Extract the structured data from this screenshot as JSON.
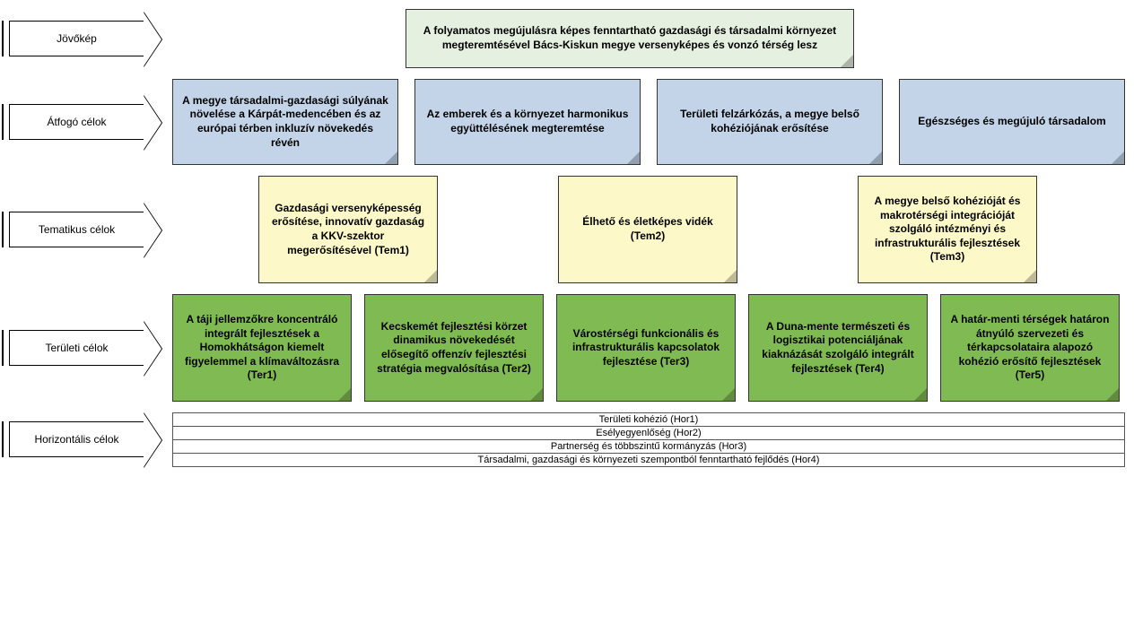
{
  "colors": {
    "vision_bg": "#e6f0e0",
    "overall_bg": "#c3d4e8",
    "thematic_bg": "#fdf8c7",
    "territorial_bg": "#7fbb52",
    "horizontal_bg": "#ffffff",
    "border": "#333333"
  },
  "rows": {
    "vision": {
      "label": "Jövőkép",
      "note": "A folyamatos megújulásra képes fenntartható gazdasági és társadalmi környezet megteremtésével Bács-Kiskun megye versenyképes és vonzó térség lesz"
    },
    "overall": {
      "label": "Átfogó célok",
      "items": [
        "A megye társadalmi-gazdasági súlyának növelése a Kárpát-medencében és az európai térben inkluzív növekedés révén",
        "Az emberek és a környezet harmonikus együttélésének megteremtése",
        "Területi felzárkózás, a megye belső kohéziójának erősítése",
        "Egészséges és megújuló társadalom"
      ]
    },
    "thematic": {
      "label": "Tematikus célok",
      "items": [
        "Gazdasági versenyképesség erősítése, innovatív gazdaság a KKV-szektor megerősítésével (Tem1)",
        "Élhető és életképes vidék (Tem2)",
        "A megye belső kohézióját és makrotérségi integrációját szolgáló intézményi és infrastrukturális fejlesztések (Tem3)"
      ]
    },
    "territorial": {
      "label": "Területi célok",
      "items": [
        "A táji jellemzőkre koncentráló integrált fejlesztések a Homokhátságon kiemelt figyelemmel a klímaváltozásra (Ter1)",
        "Kecskemét fejlesztési körzet dinamikus növekedését elősegítő offenzív fejlesztési stratégia megvalósítása (Ter2)",
        "Várostérségi funkcionális és infrastrukturális kapcsolatok fejlesztése (Ter3)",
        "A Duna-mente természeti és logisztikai potenciáljának kiaknázását szolgáló integrált fejlesztések (Ter4)",
        "A határ-menti térségek határon átnyúló szervezeti és térkapcsolataira alapozó kohézió erősítő fejlesztések (Ter5)"
      ]
    },
    "horizontal": {
      "label": "Horizontális célok",
      "items": [
        "Területi kohézió (Hor1)",
        "Esélyegyenlőség (Hor2)",
        "Partnerség és többszintű kormányzás (Hor3)",
        "Társadalmi, gazdasági és környezeti szempontból fenntartható fejlődés (Hor4)"
      ]
    }
  }
}
